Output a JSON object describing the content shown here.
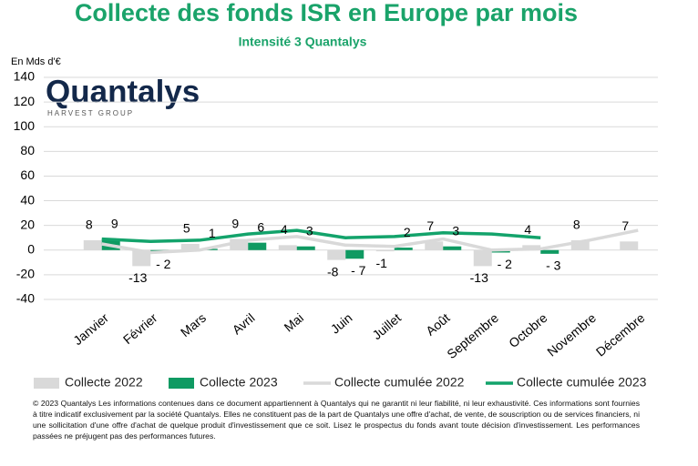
{
  "chart_data": {
    "type": "bar",
    "title": "Collecte des fonds ISR en Europe par mois",
    "subtitle": "Intensité 3 Quantalys",
    "y_label": "En Mds d'€",
    "logo": "Quantalys",
    "logo_sub": "HARVEST GROUP",
    "categories": [
      "Janvier",
      "Février",
      "Mars",
      "Avril",
      "Mai",
      "Juin",
      "Juillet",
      "Août",
      "Septembre",
      "Octobre",
      "Novembre",
      "Décembre"
    ],
    "series": [
      {
        "name": "Collecte 2022",
        "type": "bar",
        "color": "#d9d9d9",
        "values": [
          8,
          -13,
          5,
          9,
          4,
          -8,
          -1,
          7,
          -13,
          4,
          8,
          7
        ]
      },
      {
        "name": "Collecte 2023",
        "type": "bar",
        "color": "#0f9a62",
        "values": [
          9,
          -2,
          1,
          6,
          3,
          -7,
          2,
          3,
          -2,
          -3,
          null,
          null
        ],
        "value_labels": [
          "9",
          "- 2",
          "1",
          "6",
          "3",
          "- 7",
          "2",
          "3",
          "- 2",
          "- 3",
          null,
          null
        ]
      },
      {
        "name": "Collecte cumulée 2022",
        "type": "line",
        "color": "#d9d9d9",
        "values": [
          5,
          -2,
          0,
          8,
          11,
          4,
          3,
          9,
          0,
          1,
          8,
          16
        ]
      },
      {
        "name": "Collecte cumulée 2023",
        "type": "line",
        "color": "#13a36b",
        "values": [
          9,
          7,
          8,
          13,
          16,
          10,
          11,
          14,
          13,
          10,
          null,
          null
        ]
      }
    ],
    "ylim": [
      -40,
      140
    ],
    "yticks": [
      -40,
      -20,
      0,
      20,
      40,
      60,
      80,
      100,
      120,
      140
    ],
    "grid": true,
    "footnote": "© 2023 Quantalys Les informations contenues dans ce document appartiennent à Quantalys qui ne garantit ni leur fiabilité, ni leur exhaustivité. Ces informations sont fournies à titre indicatif exclusivement par la société Quantalys. Elles ne constituent pas de la part de Quantalys une offre d'achat, de vente, de souscription ou de services financiers, ni une sollicitation d'une offre d'achat de quelque produit d'investissement que ce soit. Lisez le prospectus du fonds avant toute décision d'investissement. Les performances passées ne préjugent pas des performances futures."
  }
}
